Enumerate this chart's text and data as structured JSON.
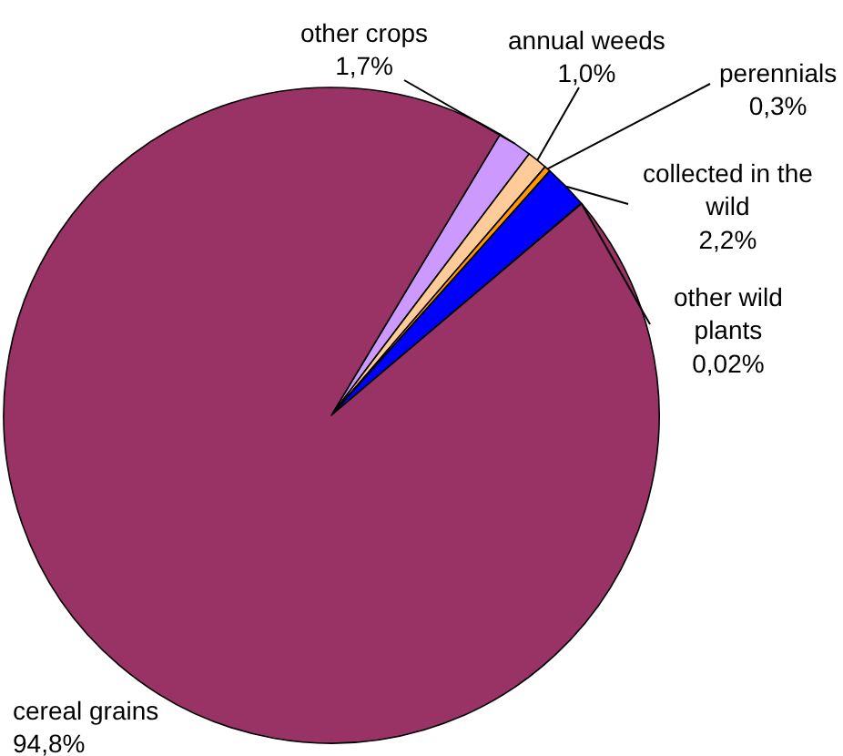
{
  "chart_data": {
    "type": "pie",
    "categories": [
      "other crops",
      "annual weeds",
      "perennials",
      "collected in the wild",
      "other wild plants",
      "cereal grains"
    ],
    "values": [
      1.7,
      1.0,
      0.3,
      2.2,
      0.02,
      94.8
    ],
    "colors": [
      "#cc99ff",
      "#ffcc99",
      "#ff9900",
      "#0000ff",
      "#33cccc",
      "#993366"
    ],
    "value_labels": [
      "1,7%",
      "1,0%",
      "0,3%",
      "2,2%",
      "0,02%",
      "94,8%"
    ]
  }
}
